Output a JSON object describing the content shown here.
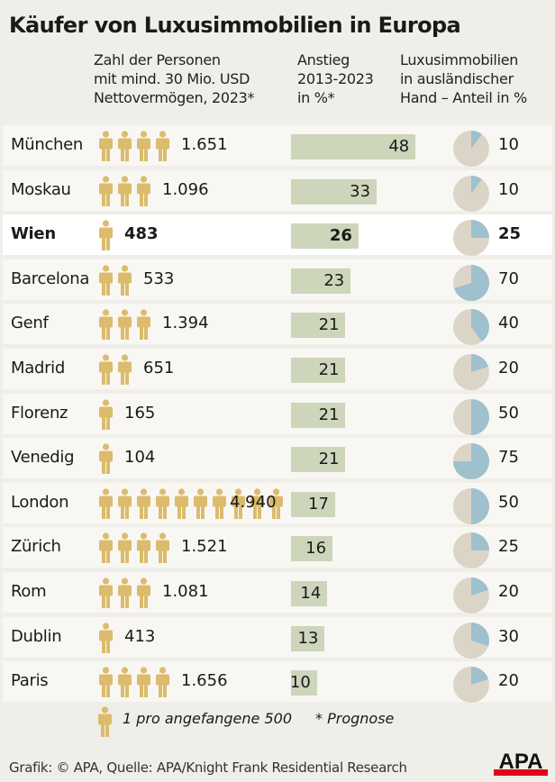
{
  "chart_data": {
    "type": "table",
    "title": "Käufer von Luxusimmobilien in Europa",
    "columns": [
      "Zahl der Personen mit mind. 30 Mio. USD Nettovermögen, 2023*",
      "Anstieg 2013-2023 in %*",
      "Luxusimmobilien in ausländischer Hand – Anteil in %"
    ],
    "rows": [
      {
        "city": "München",
        "persons": "1.651",
        "icons": 4,
        "increase": 48,
        "foreign_share": 10
      },
      {
        "city": "Moskau",
        "persons": "1.096",
        "icons": 3,
        "increase": 33,
        "foreign_share": 10
      },
      {
        "city": "Wien",
        "persons": "483",
        "icons": 1,
        "increase": 26,
        "foreign_share": 25,
        "highlight": true
      },
      {
        "city": "Barcelona",
        "persons": "533",
        "icons": 2,
        "increase": 23,
        "foreign_share": 70
      },
      {
        "city": "Genf",
        "persons": "1.394",
        "icons": 3,
        "increase": 21,
        "foreign_share": 40
      },
      {
        "city": "Madrid",
        "persons": "651",
        "icons": 2,
        "increase": 21,
        "foreign_share": 20
      },
      {
        "city": "Florenz",
        "persons": "165",
        "icons": 1,
        "increase": 21,
        "foreign_share": 50
      },
      {
        "city": "Venedig",
        "persons": "104",
        "icons": 1,
        "increase": 21,
        "foreign_share": 75
      },
      {
        "city": "London",
        "persons": "4.940",
        "icons": 10,
        "increase": 17,
        "foreign_share": 50
      },
      {
        "city": "Zürich",
        "persons": "1.521",
        "icons": 4,
        "increase": 16,
        "foreign_share": 25
      },
      {
        "city": "Rom",
        "persons": "1.081",
        "icons": 3,
        "increase": 14,
        "foreign_share": 20
      },
      {
        "city": "Dublin",
        "persons": "413",
        "icons": 1,
        "increase": 13,
        "foreign_share": 30
      },
      {
        "city": "Paris",
        "persons": "1.656",
        "icons": 4,
        "increase": 10,
        "foreign_share": 20
      }
    ],
    "legend": {
      "icon_note": "1 pro angefangene 500",
      "asterisk_note": "* Prognose"
    },
    "colors": {
      "person": "#dcbb6c",
      "bar": "#cdd5bb",
      "pie_base": "#dbd5c8",
      "pie_share": "#9fc0cd"
    }
  },
  "header": {
    "col1": [
      "Zahl der Personen",
      "mit mind. 30 Mio. USD",
      "Nettovermögen, 2023*"
    ],
    "col2": [
      "Anstieg",
      "2013-2023",
      "in %*"
    ],
    "col3": [
      "Luxusimmobilien",
      "in ausländischer",
      "Hand – Anteil in %"
    ]
  },
  "footer": {
    "source": "Grafik: © APA, Quelle: APA/Knight Frank Residential Research",
    "logo": "APA"
  }
}
